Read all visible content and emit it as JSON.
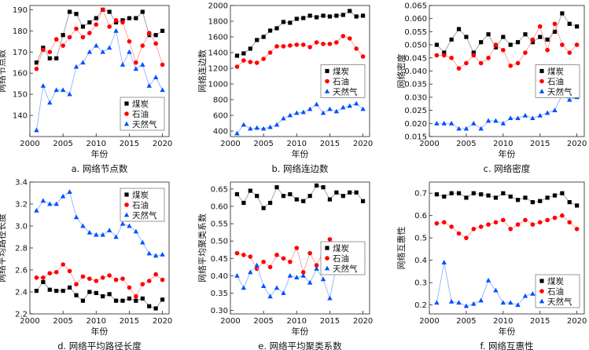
{
  "colors": {
    "series": [
      "#000000",
      "#ff0000",
      "#0050ff"
    ]
  },
  "chart_data": [
    {
      "type": "line",
      "title": "a. 网络节点数",
      "xlabel": "年份",
      "ylabel": "网络节点数",
      "xlim": [
        2000,
        2021
      ],
      "ylim": [
        130,
        192
      ],
      "xticks": [
        2000,
        2005,
        2010,
        2015,
        2020
      ],
      "yticks": [
        140,
        150,
        160,
        170,
        180,
        190
      ],
      "legend_position": "bottom-right",
      "x": [
        2001,
        2002,
        2003,
        2004,
        2005,
        2006,
        2007,
        2008,
        2009,
        2010,
        2011,
        2012,
        2013,
        2014,
        2015,
        2016,
        2017,
        2018,
        2019,
        2020
      ],
      "series": [
        {
          "name": "煤炭",
          "marker": "square",
          "values": [
            165,
            172,
            167,
            167,
            178,
            189,
            188,
            182,
            184,
            186,
            190,
            189,
            184,
            185,
            186,
            186,
            189,
            178,
            178,
            180
          ]
        },
        {
          "name": "石油",
          "marker": "circle",
          "values": [
            162,
            171,
            170,
            176,
            173,
            177,
            181,
            177,
            179,
            183,
            190,
            182,
            185,
            184,
            175,
            165,
            173,
            179,
            174,
            164
          ]
        },
        {
          "name": "天然气",
          "marker": "triangle",
          "values": [
            133,
            154,
            146,
            152,
            152,
            150,
            163,
            165,
            170,
            173,
            170,
            172,
            180,
            164,
            170,
            162,
            164,
            154,
            158,
            152
          ]
        }
      ]
    },
    {
      "type": "line",
      "title": "b. 网络连边数",
      "xlabel": "年份",
      "ylabel": "网络连边数",
      "xlim": [
        2000,
        2021
      ],
      "ylim": [
        330,
        2000
      ],
      "xticks": [
        2000,
        2005,
        2010,
        2015,
        2020
      ],
      "yticks": [
        400,
        600,
        800,
        1000,
        1200,
        1400,
        1600,
        1800,
        2000
      ],
      "legend_position": "right",
      "x": [
        2001,
        2002,
        2003,
        2004,
        2005,
        2006,
        2007,
        2008,
        2009,
        2010,
        2011,
        2012,
        2013,
        2014,
        2015,
        2016,
        2017,
        2018,
        2019,
        2020
      ],
      "series": [
        {
          "name": "煤炭",
          "marker": "square",
          "values": [
            1360,
            1390,
            1450,
            1560,
            1600,
            1680,
            1710,
            1790,
            1780,
            1830,
            1840,
            1870,
            1850,
            1870,
            1860,
            1870,
            1880,
            1930,
            1860,
            1870
          ]
        },
        {
          "name": "石油",
          "marker": "circle",
          "values": [
            1220,
            1300,
            1280,
            1270,
            1320,
            1400,
            1480,
            1480,
            1490,
            1500,
            1500,
            1470,
            1530,
            1510,
            1510,
            1530,
            1610,
            1580,
            1450,
            1350
          ]
        },
        {
          "name": "天然气",
          "marker": "triangle",
          "values": [
            370,
            480,
            430,
            440,
            430,
            450,
            480,
            560,
            600,
            630,
            640,
            680,
            740,
            630,
            680,
            650,
            700,
            720,
            750,
            680
          ]
        }
      ]
    },
    {
      "type": "line",
      "title": "c. 网络密度",
      "xlabel": "年份",
      "ylabel": "网络密度",
      "xlim": [
        2000,
        2021
      ],
      "ylim": [
        0.015,
        0.065
      ],
      "xticks": [
        2000,
        2005,
        2010,
        2015,
        2020
      ],
      "yticks": [
        0.015,
        0.02,
        0.025,
        0.03,
        0.035,
        0.04,
        0.045,
        0.05,
        0.055,
        0.06,
        0.065
      ],
      "ytick_labels": [
        "0.015",
        "0.020",
        "0.025",
        "0.030",
        "0.035",
        "0.040",
        "0.045",
        "0.050",
        "0.055",
        "0.060",
        "0.065"
      ],
      "legend_position": "right",
      "x": [
        2001,
        2002,
        2003,
        2004,
        2005,
        2006,
        2007,
        2008,
        2009,
        2010,
        2011,
        2012,
        2013,
        2014,
        2015,
        2016,
        2017,
        2018,
        2019,
        2020
      ],
      "series": [
        {
          "name": "煤炭",
          "marker": "square",
          "values": [
            0.05,
            0.047,
            0.052,
            0.056,
            0.053,
            0.047,
            0.051,
            0.054,
            0.049,
            0.053,
            0.05,
            0.051,
            0.054,
            0.051,
            0.053,
            0.052,
            0.055,
            0.062,
            0.058,
            0.057
          ]
        },
        {
          "name": "石油",
          "marker": "circle",
          "values": [
            0.046,
            0.046,
            0.045,
            0.041,
            0.043,
            0.046,
            0.043,
            0.045,
            0.05,
            0.048,
            0.042,
            0.043,
            0.047,
            0.052,
            0.057,
            0.048,
            0.058,
            0.05,
            0.047,
            0.05
          ]
        },
        {
          "name": "天然气",
          "marker": "triangle",
          "values": [
            0.02,
            0.02,
            0.02,
            0.018,
            0.018,
            0.02,
            0.018,
            0.021,
            0.021,
            0.02,
            0.022,
            0.022,
            0.023,
            0.022,
            0.023,
            0.024,
            0.025,
            0.031,
            0.029,
            0.03
          ]
        }
      ]
    },
    {
      "type": "line",
      "title": "d. 网络平均路径长度",
      "xlabel": "年份",
      "ylabel": "网络平均路径长度",
      "xlim": [
        2000,
        2021
      ],
      "ylim": [
        2.2,
        3.4
      ],
      "xticks": [
        2000,
        2005,
        2010,
        2015,
        2020
      ],
      "yticks": [
        2.2,
        2.4,
        2.6,
        2.8,
        3.0,
        3.2,
        3.4
      ],
      "ytick_labels": [
        "2.2",
        "2.4",
        "2.6",
        "2.8",
        "3.0",
        "3.2",
        "3.4"
      ],
      "legend_position": "top-right",
      "x": [
        2001,
        2002,
        2003,
        2004,
        2005,
        2006,
        2007,
        2008,
        2009,
        2010,
        2011,
        2012,
        2013,
        2014,
        2015,
        2016,
        2017,
        2018,
        2019,
        2020
      ],
      "series": [
        {
          "name": "煤炭",
          "marker": "square",
          "values": [
            2.41,
            2.49,
            2.42,
            2.41,
            2.41,
            2.44,
            2.37,
            2.32,
            2.4,
            2.39,
            2.36,
            2.38,
            2.32,
            2.32,
            2.34,
            2.32,
            2.34,
            2.27,
            2.25,
            2.33
          ]
        },
        {
          "name": "石油",
          "marker": "circle",
          "values": [
            2.53,
            2.53,
            2.57,
            2.58,
            2.65,
            2.59,
            2.47,
            2.54,
            2.52,
            2.5,
            2.53,
            2.55,
            2.51,
            2.52,
            2.44,
            2.36,
            2.47,
            2.5,
            2.56,
            2.51
          ]
        },
        {
          "name": "天然气",
          "marker": "triangle",
          "values": [
            3.14,
            3.23,
            3.2,
            3.2,
            3.27,
            3.31,
            3.08,
            3.0,
            2.94,
            2.92,
            2.92,
            2.96,
            2.9,
            3.02,
            3.0,
            2.95,
            2.85,
            2.75,
            2.73,
            2.74
          ]
        }
      ]
    },
    {
      "type": "line",
      "title": "e. 网络平均聚类系数",
      "xlabel": "年份",
      "ylabel": "网络平均聚类系数",
      "xlim": [
        2000,
        2021
      ],
      "ylim": [
        0.29,
        0.67
      ],
      "xticks": [
        2000,
        2005,
        2010,
        2015,
        2020
      ],
      "yticks": [
        0.3,
        0.35,
        0.4,
        0.45,
        0.5,
        0.55,
        0.6,
        0.65
      ],
      "ytick_labels": [
        "0.30",
        "0.35",
        "0.40",
        "0.45",
        "0.50",
        "0.55",
        "0.60",
        "0.65"
      ],
      "legend_position": "right",
      "x": [
        2001,
        2002,
        2003,
        2004,
        2005,
        2006,
        2007,
        2008,
        2009,
        2010,
        2011,
        2012,
        2013,
        2014,
        2015,
        2016,
        2017,
        2018,
        2019,
        2020
      ],
      "series": [
        {
          "name": "煤炭",
          "marker": "square",
          "values": [
            0.635,
            0.61,
            0.645,
            0.63,
            0.595,
            0.61,
            0.655,
            0.63,
            0.635,
            0.62,
            0.615,
            0.63,
            0.66,
            0.655,
            0.62,
            0.64,
            0.63,
            0.64,
            0.64,
            0.615
          ]
        },
        {
          "name": "石油",
          "marker": "circle",
          "values": [
            0.465,
            0.46,
            0.455,
            0.42,
            0.44,
            0.425,
            0.46,
            0.45,
            0.44,
            0.48,
            0.41,
            0.465,
            0.43,
            0.47,
            0.505,
            0.49,
            0.49,
            0.48,
            0.47,
            0.49
          ]
        },
        {
          "name": "天然气",
          "marker": "triangle",
          "values": [
            0.4,
            0.365,
            0.41,
            0.43,
            0.37,
            0.34,
            0.365,
            0.35,
            0.4,
            0.395,
            0.4,
            0.38,
            0.42,
            0.39,
            0.335,
            0.43,
            0.46,
            0.45,
            0.445,
            0.445
          ]
        }
      ]
    },
    {
      "type": "line",
      "title": "f. 网络互惠性",
      "xlabel": "年份",
      "ylabel": "网络互惠性",
      "xlim": [
        2000,
        2021
      ],
      "ylim": [
        0.16,
        0.75
      ],
      "xticks": [
        2000,
        2005,
        2010,
        2015,
        2020
      ],
      "yticks": [
        0.2,
        0.3,
        0.4,
        0.5,
        0.6,
        0.7
      ],
      "ytick_labels": [
        "0.2",
        "0.3",
        "0.4",
        "0.5",
        "0.6",
        "0.7"
      ],
      "legend_position": "bottom-right",
      "x": [
        2001,
        2002,
        2003,
        2004,
        2005,
        2006,
        2007,
        2008,
        2009,
        2010,
        2011,
        2012,
        2013,
        2014,
        2015,
        2016,
        2017,
        2018,
        2019,
        2020
      ],
      "series": [
        {
          "name": "煤炭",
          "marker": "square",
          "values": [
            0.695,
            0.685,
            0.7,
            0.7,
            0.68,
            0.7,
            0.695,
            0.69,
            0.68,
            0.7,
            0.685,
            0.67,
            0.68,
            0.66,
            0.665,
            0.68,
            0.69,
            0.7,
            0.66,
            0.645
          ]
        },
        {
          "name": "石油",
          "marker": "circle",
          "values": [
            0.565,
            0.57,
            0.55,
            0.52,
            0.5,
            0.54,
            0.55,
            0.56,
            0.57,
            0.58,
            0.54,
            0.56,
            0.58,
            0.56,
            0.57,
            0.58,
            0.59,
            0.6,
            0.57,
            0.54
          ]
        },
        {
          "name": "天然气",
          "marker": "triangle",
          "values": [
            0.21,
            0.39,
            0.215,
            0.21,
            0.195,
            0.205,
            0.22,
            0.31,
            0.265,
            0.21,
            0.21,
            0.2,
            0.24,
            0.25,
            0.23,
            0.25,
            0.255,
            0.27,
            0.285,
            0.23
          ]
        }
      ]
    }
  ]
}
